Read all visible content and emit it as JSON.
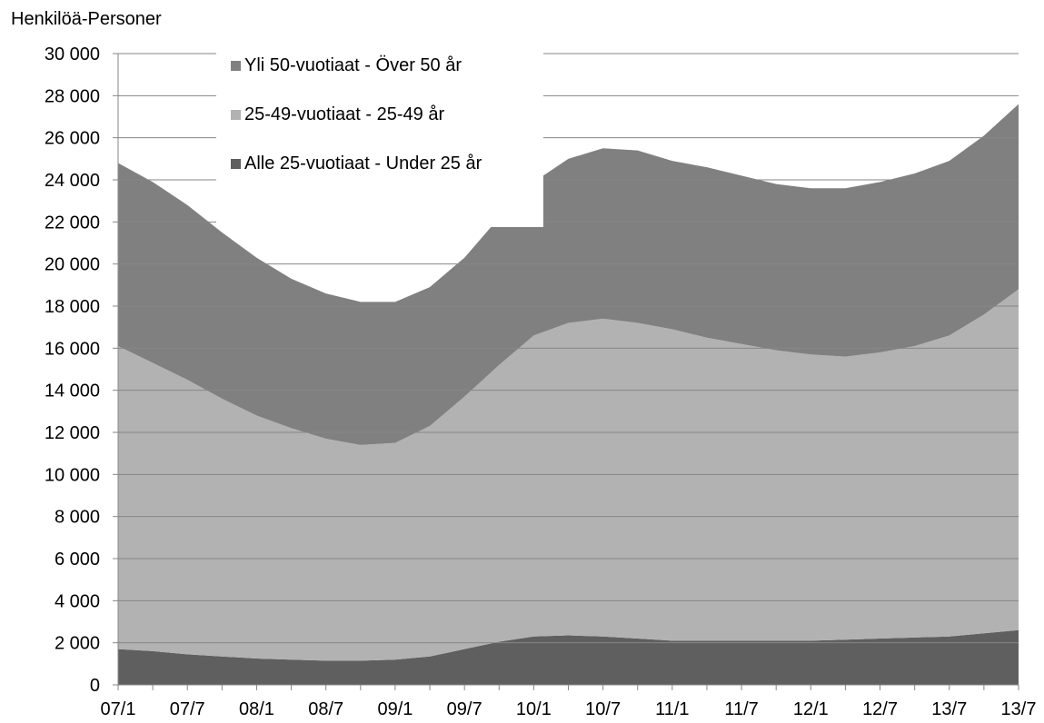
{
  "chart_data": {
    "type": "stacked-area",
    "y_axis_label": "Henkilöä-Personer",
    "categories": [
      "07/1",
      null,
      "07/7",
      null,
      "08/1",
      null,
      "08/7",
      null,
      "09/1",
      null,
      "09/7",
      null,
      "10/1",
      null,
      "10/7",
      null,
      "11/1",
      null,
      "11/7",
      null,
      "12/1",
      null,
      "12/7",
      null,
      "13/7",
      null,
      "13/7"
    ],
    "series": [
      {
        "name": "Alle 25-vuotiaat - Under 25 år",
        "color": "#5f5f5f",
        "values": [
          1700,
          1600,
          1450,
          1350,
          1250,
          1200,
          1150,
          1150,
          1200,
          1350,
          1700,
          2050,
          2300,
          2350,
          2300,
          2200,
          2100,
          2100,
          2100,
          2100,
          2100,
          2150,
          2200,
          2250,
          2300,
          2450,
          2600
        ]
      },
      {
        "name": "25-49-vuotiaat - 25-49 år",
        "color": "#b2b2b2",
        "values": [
          14400,
          13700,
          13050,
          12250,
          11550,
          11000,
          10550,
          10250,
          10300,
          10950,
          12000,
          13150,
          14300,
          14850,
          15100,
          15000,
          14800,
          14400,
          14100,
          13800,
          13600,
          13450,
          13600,
          13850,
          14300,
          15150,
          16200
        ]
      },
      {
        "name": "Yli 50-vuotiaat - Över 50 år",
        "color": "#808080",
        "values": [
          8700,
          8600,
          8300,
          7900,
          7500,
          7100,
          6900,
          6800,
          6700,
          6600,
          6600,
          7000,
          7300,
          7800,
          8100,
          8200,
          8000,
          8100,
          8000,
          7900,
          7900,
          8000,
          8100,
          8200,
          8300,
          8500,
          8800
        ]
      }
    ],
    "ylim": [
      0,
      30000
    ],
    "yticks": [
      0,
      {
        "value": 2000,
        "label": "2 000"
      },
      {
        "value": 4000,
        "label": "4 000"
      },
      {
        "value": 6000,
        "label": "6 000"
      },
      {
        "value": 8000,
        "label": "8 000"
      },
      {
        "value": 10000,
        "label": "10 000"
      },
      {
        "value": 12000,
        "label": "12 000"
      },
      {
        "value": 14000,
        "label": "14 000"
      },
      {
        "value": 16000,
        "label": "16 000"
      },
      {
        "value": 18000,
        "label": "18 000"
      },
      {
        "value": 20000,
        "label": "20 000"
      },
      {
        "value": 22000,
        "label": "22 000"
      },
      {
        "value": 24000,
        "label": "24 000"
      },
      {
        "value": 26000,
        "label": "26 000"
      },
      {
        "value": 28000,
        "label": "28 000"
      },
      {
        "value": 30000,
        "label": "30 000"
      }
    ],
    "grid": true,
    "legend": "top-left"
  }
}
